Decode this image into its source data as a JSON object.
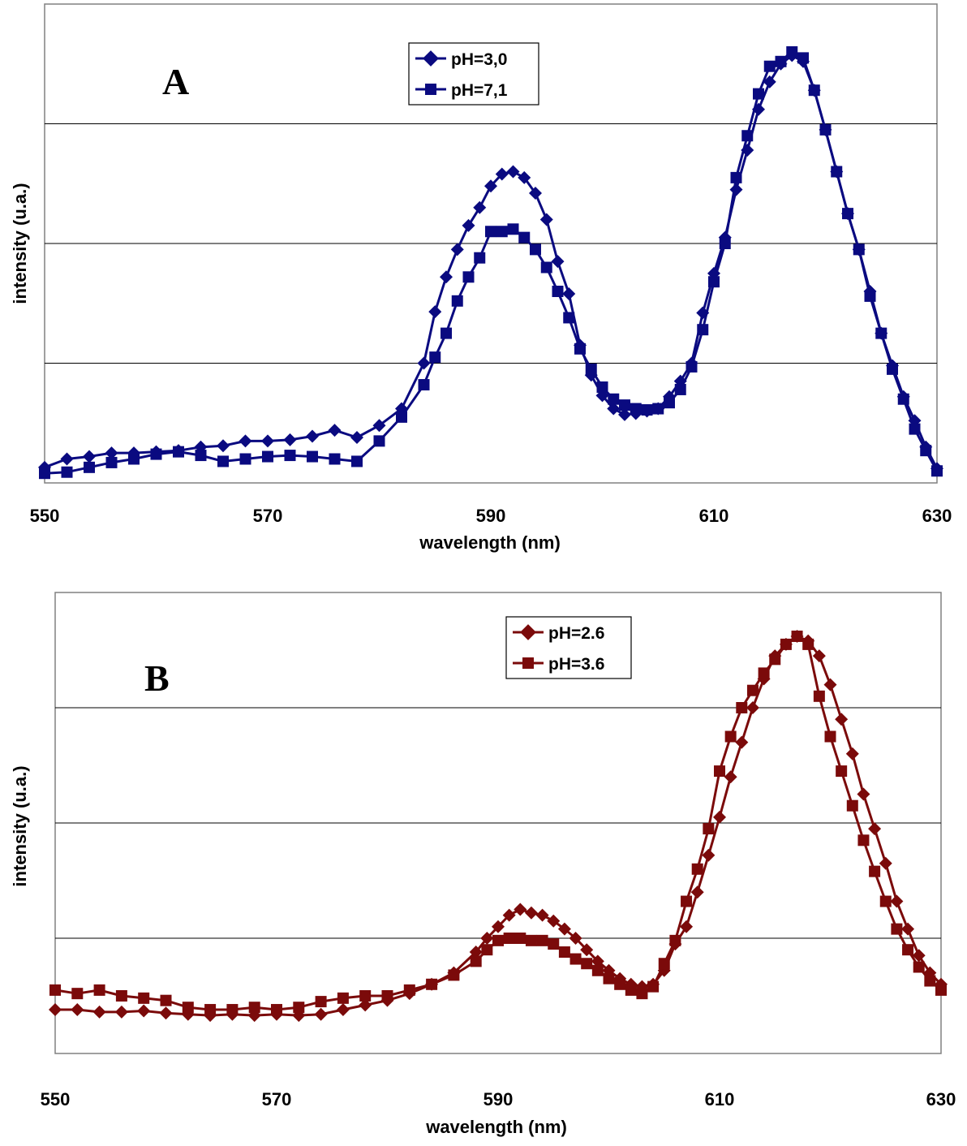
{
  "chart_data": [
    {
      "type": "line",
      "panel_label": "A",
      "xlabel": "wavelength (nm)",
      "ylabel": "intensity (u.a.)",
      "xlim": [
        550,
        630
      ],
      "ylim": [
        0,
        4
      ],
      "xticks": [
        "550",
        "570",
        "590",
        "610",
        "630"
      ],
      "grid": true,
      "legend_position": "top-center",
      "colors": {
        "series": "#0a0a80"
      },
      "series": [
        {
          "name": "pH=3,0",
          "marker": "diamond",
          "x": [
            550,
            552,
            554,
            556,
            558,
            560,
            562,
            564,
            566,
            568,
            570,
            572,
            574,
            576,
            578,
            580,
            582,
            584,
            585,
            586,
            587,
            588,
            589,
            590,
            591,
            592,
            593,
            594,
            595,
            596,
            597,
            598,
            599,
            600,
            601,
            602,
            603,
            604,
            605,
            606,
            607,
            608,
            609,
            610,
            611,
            612,
            613,
            614,
            615,
            616,
            617,
            618,
            619,
            620,
            621,
            622,
            623,
            624,
            625,
            626,
            627,
            628,
            629,
            630
          ],
          "y": [
            0.13,
            0.2,
            0.22,
            0.25,
            0.25,
            0.26,
            0.27,
            0.3,
            0.31,
            0.35,
            0.35,
            0.36,
            0.39,
            0.44,
            0.38,
            0.48,
            0.62,
            1.0,
            1.43,
            1.72,
            1.95,
            2.15,
            2.3,
            2.48,
            2.58,
            2.6,
            2.55,
            2.42,
            2.2,
            1.85,
            1.58,
            1.15,
            0.9,
            0.73,
            0.62,
            0.57,
            0.58,
            0.6,
            0.62,
            0.72,
            0.85,
            1.0,
            1.42,
            1.75,
            2.05,
            2.45,
            2.78,
            3.12,
            3.35,
            3.5,
            3.57,
            3.52,
            3.28,
            2.95,
            2.6,
            2.25,
            1.95,
            1.6,
            1.25,
            0.98,
            0.72,
            0.52,
            0.3,
            0.12
          ]
        },
        {
          "name": "pH=7,1",
          "marker": "square",
          "x": [
            550,
            552,
            554,
            556,
            558,
            560,
            562,
            564,
            566,
            568,
            570,
            572,
            574,
            576,
            578,
            580,
            582,
            584,
            585,
            586,
            587,
            588,
            589,
            590,
            591,
            592,
            593,
            594,
            595,
            596,
            597,
            598,
            599,
            600,
            601,
            602,
            603,
            604,
            605,
            606,
            607,
            608,
            609,
            610,
            611,
            612,
            613,
            614,
            615,
            616,
            617,
            618,
            619,
            620,
            621,
            622,
            623,
            624,
            625,
            626,
            627,
            628,
            629,
            630
          ],
          "y": [
            0.08,
            0.09,
            0.13,
            0.17,
            0.2,
            0.24,
            0.26,
            0.23,
            0.18,
            0.2,
            0.22,
            0.23,
            0.22,
            0.2,
            0.18,
            0.35,
            0.55,
            0.82,
            1.05,
            1.25,
            1.52,
            1.72,
            1.88,
            2.1,
            2.1,
            2.12,
            2.05,
            1.95,
            1.8,
            1.6,
            1.38,
            1.12,
            0.95,
            0.8,
            0.7,
            0.65,
            0.62,
            0.61,
            0.62,
            0.67,
            0.78,
            0.97,
            1.28,
            1.68,
            2.0,
            2.55,
            2.9,
            3.25,
            3.48,
            3.52,
            3.6,
            3.55,
            3.28,
            2.95,
            2.6,
            2.25,
            1.95,
            1.56,
            1.25,
            0.95,
            0.7,
            0.45,
            0.27,
            0.1
          ]
        }
      ]
    },
    {
      "type": "line",
      "panel_label": "B",
      "xlabel": "wavelength (nm)",
      "ylabel": "intensity (u.a.)",
      "xlim": [
        550,
        630
      ],
      "ylim": [
        0,
        4
      ],
      "xticks": [
        "550",
        "570",
        "590",
        "610",
        "630"
      ],
      "grid": true,
      "legend_position": "top-right",
      "colors": {
        "series": "#7b0a0a"
      },
      "series": [
        {
          "name": "pH=2.6",
          "marker": "diamond",
          "x": [
            550,
            552,
            554,
            556,
            558,
            560,
            562,
            564,
            566,
            568,
            570,
            572,
            574,
            576,
            578,
            580,
            582,
            584,
            586,
            588,
            589,
            590,
            591,
            592,
            593,
            594,
            595,
            596,
            597,
            598,
            599,
            600,
            601,
            602,
            603,
            604,
            605,
            606,
            607,
            608,
            609,
            610,
            611,
            612,
            613,
            614,
            615,
            616,
            617,
            618,
            619,
            620,
            621,
            622,
            623,
            624,
            625,
            626,
            627,
            628,
            629,
            630
          ],
          "y": [
            0.38,
            0.38,
            0.36,
            0.36,
            0.37,
            0.35,
            0.34,
            0.33,
            0.34,
            0.33,
            0.34,
            0.33,
            0.34,
            0.38,
            0.42,
            0.46,
            0.52,
            0.6,
            0.7,
            0.88,
            1.0,
            1.1,
            1.2,
            1.25,
            1.22,
            1.2,
            1.15,
            1.08,
            1.0,
            0.9,
            0.8,
            0.72,
            0.65,
            0.6,
            0.58,
            0.6,
            0.72,
            0.95,
            1.1,
            1.4,
            1.72,
            2.05,
            2.4,
            2.7,
            3.0,
            3.25,
            3.45,
            3.55,
            3.62,
            3.58,
            3.45,
            3.2,
            2.9,
            2.6,
            2.25,
            1.95,
            1.65,
            1.32,
            1.08,
            0.85,
            0.7,
            0.6
          ]
        },
        {
          "name": "pH=3.6",
          "marker": "square",
          "x": [
            550,
            552,
            554,
            556,
            558,
            560,
            562,
            564,
            566,
            568,
            570,
            572,
            574,
            576,
            578,
            580,
            582,
            584,
            586,
            588,
            589,
            590,
            591,
            592,
            593,
            594,
            595,
            596,
            597,
            598,
            599,
            600,
            601,
            602,
            603,
            604,
            605,
            606,
            607,
            608,
            609,
            610,
            611,
            612,
            613,
            614,
            615,
            616,
            617,
            618,
            619,
            620,
            621,
            622,
            623,
            624,
            625,
            626,
            627,
            628,
            629,
            630
          ],
          "y": [
            0.55,
            0.52,
            0.55,
            0.5,
            0.48,
            0.46,
            0.4,
            0.38,
            0.38,
            0.4,
            0.38,
            0.4,
            0.45,
            0.48,
            0.5,
            0.5,
            0.55,
            0.6,
            0.68,
            0.8,
            0.9,
            0.98,
            1.0,
            1.0,
            0.98,
            0.98,
            0.95,
            0.88,
            0.82,
            0.78,
            0.72,
            0.65,
            0.6,
            0.55,
            0.52,
            0.58,
            0.78,
            0.98,
            1.32,
            1.6,
            1.95,
            2.45,
            2.75,
            3.0,
            3.15,
            3.3,
            3.42,
            3.55,
            3.62,
            3.55,
            3.1,
            2.75,
            2.45,
            2.15,
            1.85,
            1.58,
            1.32,
            1.08,
            0.9,
            0.75,
            0.63,
            0.55
          ]
        }
      ]
    }
  ]
}
